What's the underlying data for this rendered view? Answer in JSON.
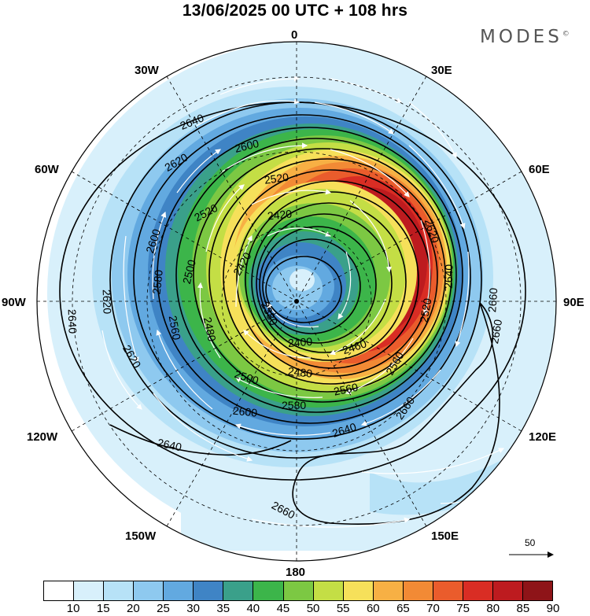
{
  "title": "13/06/2025  00 UTC  + 108 hrs",
  "brand": "MODES",
  "brand_mark": "©",
  "longitude_labels": {
    "n": "0",
    "ne30": "30E",
    "ne60": "60E",
    "e": "90E",
    "se120": "120E",
    "se150": "150E",
    "s": "180",
    "sw150": "150W",
    "sw120": "120W",
    "w": "90W",
    "nw60": "60W",
    "nw30": "30W"
  },
  "contour_labels": [
    "2640",
    "2620",
    "2600",
    "2520",
    "2520",
    "2420",
    "2420",
    "2600",
    "2580",
    "2500",
    "2560",
    "2480",
    "2380",
    "2400",
    "2460",
    "2480",
    "2500",
    "2560",
    "2580",
    "2600",
    "2640",
    "2620",
    "2640",
    "2620",
    "2620",
    "2640",
    "2640",
    "2660",
    "2660",
    "2660",
    "2660",
    "2520",
    "2560"
  ],
  "vector_reference": {
    "value": "50"
  },
  "colorbar": {
    "labels": [
      "10",
      "15",
      "20",
      "25",
      "30",
      "35",
      "40",
      "45",
      "50",
      "55",
      "60",
      "65",
      "70",
      "75",
      "80",
      "85",
      "90"
    ],
    "colors": [
      "#ffffff",
      "#d8f0fb",
      "#b7e2f7",
      "#8ec9ef",
      "#62a9e0",
      "#3f84c5",
      "#3aa08a",
      "#3cb54a",
      "#7cc843",
      "#c4de45",
      "#f6e05a",
      "#f7b044",
      "#f28a35",
      "#ea5c2c",
      "#d92d24",
      "#bd1b1f",
      "#8e1418"
    ]
  },
  "colors": {
    "land": "#f0f0f0",
    "contour": "#000000",
    "vector": "#ffffff"
  }
}
